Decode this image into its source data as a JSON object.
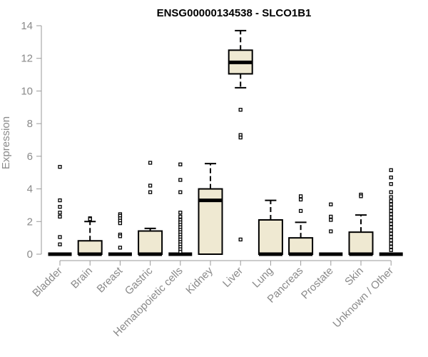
{
  "chart_data": {
    "type": "box",
    "title": "ENSG00000134538 - SLCO1B1",
    "xlabel": "",
    "ylabel": "Expression",
    "ylim": [
      0,
      14
    ],
    "yticks": [
      0,
      2,
      4,
      6,
      8,
      10,
      12,
      14
    ],
    "grid": false,
    "box_fill": "#efe9d2",
    "categories": [
      "Bladder",
      "Brain",
      "Breast",
      "Gastric",
      "Hematopoietic cells",
      "Kidney",
      "Liver",
      "Lung",
      "Pancreas",
      "Prostate",
      "Skin",
      "Unknown / Other"
    ],
    "boxes": [
      {
        "name": "Bladder",
        "whisker_low": 0,
        "q1": 0,
        "median": 0,
        "q3": 0,
        "whisker_high": 0,
        "outliers": [
          5.35,
          3.3,
          2.9,
          2.55,
          2.3,
          1.05,
          0.6
        ]
      },
      {
        "name": "Brain",
        "whisker_low": 0,
        "q1": 0,
        "median": 0,
        "q3": 0.82,
        "whisker_high": 2.0,
        "outliers": [
          2.2,
          2.15
        ]
      },
      {
        "name": "Breast",
        "whisker_low": 0,
        "q1": 0,
        "median": 0,
        "q3": 0,
        "whisker_high": 0,
        "outliers": [
          2.45,
          2.35,
          2.2,
          2.05,
          1.9,
          1.2,
          1.1,
          0.4
        ]
      },
      {
        "name": "Gastric",
        "whisker_low": 0,
        "q1": 0,
        "median": 0,
        "q3": 1.42,
        "whisker_high": 1.58,
        "outliers": [
          5.6,
          4.2,
          3.8
        ]
      },
      {
        "name": "Hematopoietic cells",
        "whisker_low": 0,
        "q1": 0,
        "median": 0,
        "q3": 0,
        "whisker_high": 0,
        "outliers": [
          5.5,
          4.55,
          3.8,
          2.55,
          2.3,
          2.1,
          1.95,
          1.8,
          1.65,
          1.5,
          1.35,
          1.2,
          1.05,
          0.9,
          0.75,
          0.6,
          0.45,
          0.3,
          0.15
        ]
      },
      {
        "name": "Kidney",
        "whisker_low": 0,
        "q1": 0,
        "median": 3.3,
        "q3": 4.0,
        "whisker_high": 5.55,
        "outliers": []
      },
      {
        "name": "Liver",
        "whisker_low": 10.2,
        "q1": 11.05,
        "median": 11.75,
        "q3": 12.5,
        "whisker_high": 13.7,
        "outliers": [
          8.85,
          7.3,
          7.15,
          0.9
        ]
      },
      {
        "name": "Lung",
        "whisker_low": 0,
        "q1": 0,
        "median": 0,
        "q3": 2.1,
        "whisker_high": 3.3,
        "outliers": []
      },
      {
        "name": "Pancreas",
        "whisker_low": 0,
        "q1": 0,
        "median": 0,
        "q3": 1.0,
        "whisker_high": 1.95,
        "outliers": [
          3.55,
          3.35,
          2.65
        ]
      },
      {
        "name": "Prostate",
        "whisker_low": 0,
        "q1": 0,
        "median": 0,
        "q3": 0,
        "whisker_high": 0,
        "outliers": [
          3.05,
          2.3,
          2.1,
          1.4
        ]
      },
      {
        "name": "Skin",
        "whisker_low": 0,
        "q1": 0,
        "median": 0,
        "q3": 1.35,
        "whisker_high": 2.4,
        "outliers": [
          3.65,
          3.55
        ]
      },
      {
        "name": "Unknown / Other",
        "whisker_low": 0,
        "q1": 0,
        "median": 0,
        "q3": 0,
        "whisker_high": 0,
        "outliers": [
          5.15,
          4.7,
          4.3,
          3.8,
          3.5,
          3.25,
          3.05,
          2.85,
          2.65,
          2.45,
          2.25,
          2.05,
          1.85,
          1.65,
          1.45,
          1.25,
          1.05,
          0.85,
          0.65,
          0.45,
          0.25
        ]
      }
    ]
  }
}
